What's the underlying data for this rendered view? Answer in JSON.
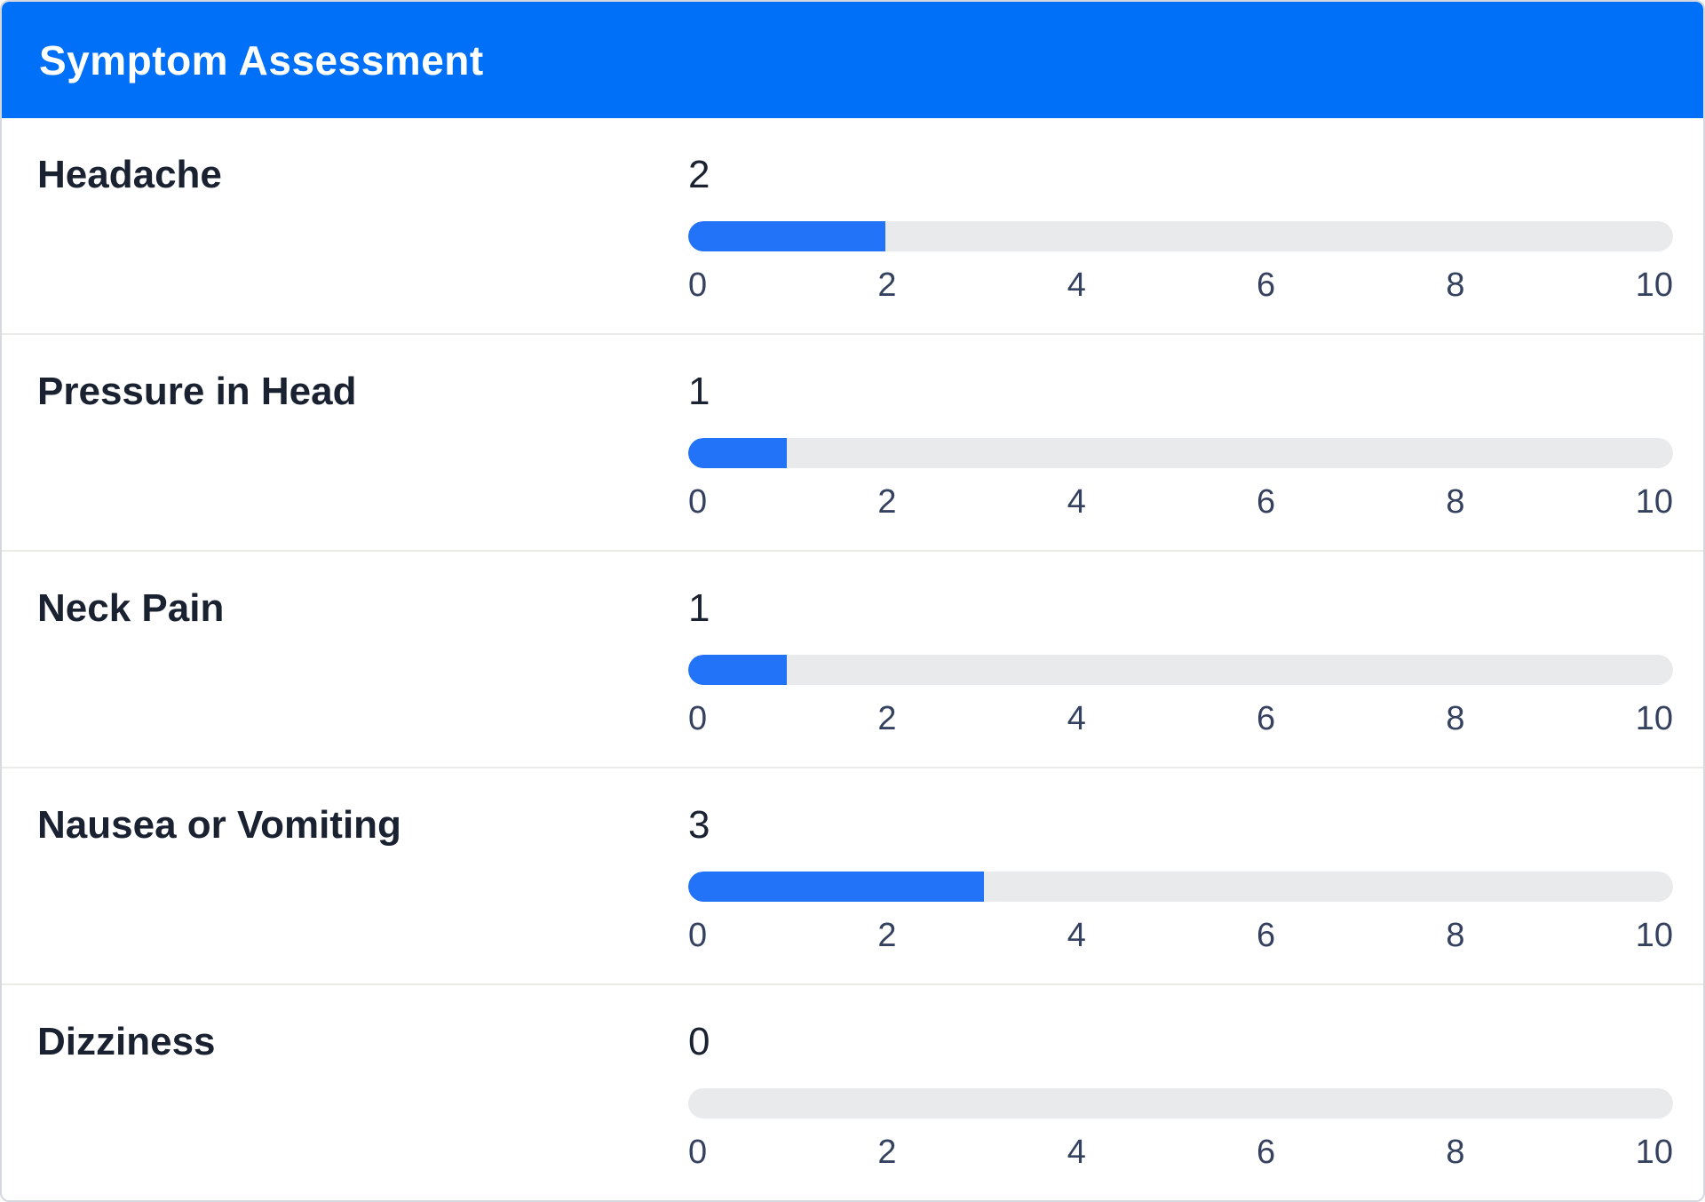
{
  "header": {
    "title": "Symptom Assessment"
  },
  "scale": {
    "min": 0,
    "max": 10,
    "ticks": [
      "0",
      "2",
      "4",
      "6",
      "8",
      "10"
    ]
  },
  "symptoms": [
    {
      "label": "Headache",
      "value": 2
    },
    {
      "label": "Pressure in Head",
      "value": 1
    },
    {
      "label": "Neck Pain",
      "value": 1
    },
    {
      "label": "Nausea or Vomiting",
      "value": 3
    },
    {
      "label": "Dizziness",
      "value": 0
    }
  ],
  "chart_data": {
    "type": "bar",
    "categories": [
      "Headache",
      "Pressure in Head",
      "Neck Pain",
      "Nausea or Vomiting",
      "Dizziness"
    ],
    "values": [
      2,
      1,
      1,
      3,
      0
    ],
    "title": "Symptom Assessment",
    "xlabel": "",
    "ylabel": "",
    "xlim": [
      0,
      10
    ],
    "tick_labels": [
      0,
      2,
      4,
      6,
      8,
      10
    ]
  },
  "colors": {
    "header_bg": "#0170f9",
    "header_text": "#ffffff",
    "bar_fill": "#2273f8",
    "bar_track": "#e8eaec",
    "label_text": "#1a2232",
    "tick_text": "#34415f",
    "divider": "#edebe7",
    "card_border": "#d5d9df"
  }
}
